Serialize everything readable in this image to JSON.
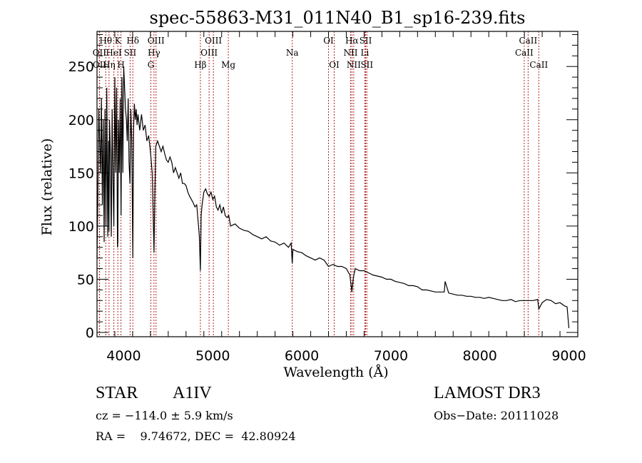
{
  "chart_data": {
    "type": "line",
    "title": "spec-55863-M31_011N40_B1_sp16-239.fits",
    "xlabel": "Wavelength (Å)",
    "ylabel": "Flux (relative)",
    "xlim": [
      3700,
      9100
    ],
    "ylim": [
      0,
      283
    ],
    "xticks": [
      4000,
      5000,
      6000,
      7000,
      8000,
      9000
    ],
    "yticks": [
      0,
      50,
      100,
      150,
      200,
      250
    ],
    "grid": false,
    "series": [
      {
        "name": "spectrum",
        "x": [
          3700,
          3710,
          3720,
          3730,
          3740,
          3750,
          3760,
          3770,
          3780,
          3790,
          3800,
          3810,
          3820,
          3830,
          3835,
          3840,
          3850,
          3860,
          3870,
          3880,
          3889,
          3900,
          3910,
          3920,
          3930,
          3934,
          3940,
          3950,
          3960,
          3970,
          3980,
          3990,
          4000,
          4010,
          4020,
          4030,
          4040,
          4050,
          4060,
          4070,
          4080,
          4090,
          4102,
          4110,
          4120,
          4130,
          4140,
          4150,
          4160,
          4180,
          4200,
          4220,
          4240,
          4260,
          4280,
          4300,
          4320,
          4340,
          4350,
          4360,
          4380,
          4400,
          4420,
          4440,
          4460,
          4480,
          4500,
          4520,
          4540,
          4560,
          4580,
          4600,
          4620,
          4640,
          4660,
          4680,
          4700,
          4720,
          4740,
          4760,
          4780,
          4800,
          4820,
          4840,
          4850,
          4861,
          4870,
          4880,
          4900,
          4920,
          4940,
          4960,
          4980,
          5000,
          5020,
          5040,
          5060,
          5080,
          5100,
          5120,
          5140,
          5160,
          5180,
          5200,
          5250,
          5300,
          5350,
          5400,
          5450,
          5500,
          5550,
          5600,
          5650,
          5700,
          5750,
          5800,
          5850,
          5880,
          5893,
          5900,
          5950,
          6000,
          6050,
          6100,
          6150,
          6200,
          6250,
          6300,
          6350,
          6400,
          6450,
          6500,
          6540,
          6563,
          6580,
          6600,
          6650,
          6700,
          6750,
          6800,
          6850,
          6900,
          6950,
          7000,
          7050,
          7100,
          7150,
          7200,
          7250,
          7300,
          7350,
          7400,
          7450,
          7500,
          7550,
          7600,
          7610,
          7650,
          7700,
          7750,
          7800,
          7850,
          7900,
          7950,
          8000,
          8050,
          8100,
          8150,
          8200,
          8250,
          8300,
          8350,
          8400,
          8450,
          8500,
          8550,
          8600,
          8650,
          8662,
          8700,
          8750,
          8800,
          8850,
          8900,
          8950,
          8980,
          9000
        ],
        "y": [
          70,
          130,
          210,
          180,
          150,
          220,
          120,
          200,
          85,
          210,
          100,
          230,
          90,
          180,
          95,
          200,
          170,
          90,
          210,
          140,
          100,
          240,
          150,
          230,
          80,
          85,
          200,
          150,
          220,
          110,
          240,
          150,
          250,
          230,
          210,
          200,
          180,
          220,
          160,
          140,
          210,
          180,
          70,
          190,
          215,
          200,
          210,
          195,
          205,
          190,
          205,
          190,
          195,
          180,
          185,
          170,
          150,
          75,
          130,
          175,
          180,
          175,
          170,
          175,
          168,
          162,
          160,
          165,
          160,
          150,
          155,
          150,
          145,
          150,
          140,
          140,
          138,
          132,
          128,
          125,
          122,
          118,
          120,
          100,
          90,
          58,
          110,
          120,
          132,
          135,
          130,
          128,
          132,
          125,
          128,
          118,
          115,
          120,
          112,
          118,
          110,
          108,
          110,
          100,
          102,
          98,
          96,
          95,
          92,
          90,
          88,
          90,
          86,
          85,
          82,
          84,
          80,
          84,
          65,
          78,
          76,
          75,
          72,
          70,
          68,
          70,
          68,
          62,
          64,
          62,
          62,
          60,
          54,
          38,
          52,
          60,
          58,
          58,
          56,
          54,
          53,
          52,
          50,
          50,
          48,
          47,
          46,
          44,
          44,
          43,
          40,
          40,
          39,
          38,
          38,
          38,
          48,
          37,
          36,
          35,
          35,
          34,
          34,
          33,
          33,
          32,
          33,
          32,
          31,
          30,
          30,
          31,
          29,
          30,
          30,
          30,
          30,
          31,
          22,
          28,
          31,
          30,
          27,
          28,
          25,
          24,
          4
        ]
      }
    ],
    "line_markers": [
      {
        "label": "Hθ",
        "wavelength": 3798,
        "row": 1
      },
      {
        "label": "K",
        "wavelength": 3934,
        "row": 1
      },
      {
        "label": "Hδ",
        "wavelength": 4102,
        "row": 1
      },
      {
        "label": "OIII",
        "wavelength": 4363,
        "row": 1
      },
      {
        "label": "OIII",
        "wavelength": 5007,
        "row": 1
      },
      {
        "label": "OI",
        "wavelength": 6300,
        "row": 1
      },
      {
        "label": "Hα",
        "wavelength": 6563,
        "row": 1
      },
      {
        "label": "SII",
        "wavelength": 6717,
        "row": 1
      },
      {
        "label": "CaII",
        "wavelength": 8542,
        "row": 1
      },
      {
        "label": "OII",
        "wavelength": 3727,
        "row": 2
      },
      {
        "label": "HeI",
        "wavelength": 3889,
        "row": 2
      },
      {
        "label": "SII",
        "wavelength": 4072,
        "row": 2
      },
      {
        "label": "Hγ",
        "wavelength": 4340,
        "row": 2
      },
      {
        "label": "OIII",
        "wavelength": 4959,
        "row": 2
      },
      {
        "label": "Na",
        "wavelength": 5893,
        "row": 2
      },
      {
        "label": "NII",
        "wavelength": 6548,
        "row": 2
      },
      {
        "label": "Li",
        "wavelength": 6708,
        "row": 2
      },
      {
        "label": "CaII",
        "wavelength": 8498,
        "row": 2
      },
      {
        "label": "Hη",
        "wavelength": 3835,
        "row": 3
      },
      {
        "label": "OII",
        "wavelength": 3729,
        "row": 3
      },
      {
        "label": "H",
        "wavelength": 3969,
        "row": 3
      },
      {
        "label": "G",
        "wavelength": 4305,
        "row": 3
      },
      {
        "label": "Hβ",
        "wavelength": 4861,
        "row": 3
      },
      {
        "label": "Mg",
        "wavelength": 5175,
        "row": 3
      },
      {
        "label": "OI",
        "wavelength": 6364,
        "row": 3
      },
      {
        "label": "NII",
        "wavelength": 6583,
        "row": 3
      },
      {
        "label": "SII",
        "wavelength": 6731,
        "row": 3
      },
      {
        "label": "CaII",
        "wavelength": 8662,
        "row": 3
      }
    ],
    "marker_color": "#b22222"
  },
  "info": {
    "class_label": "STAR",
    "subclass": "A1IV",
    "survey": "LAMOST DR3",
    "cz_line": "cz = −114.0 ± 5.9 km/s",
    "obs_date": "Obs−Date: 20111028",
    "radec_line": "RA =    9.74672, DEC =  42.80924"
  }
}
